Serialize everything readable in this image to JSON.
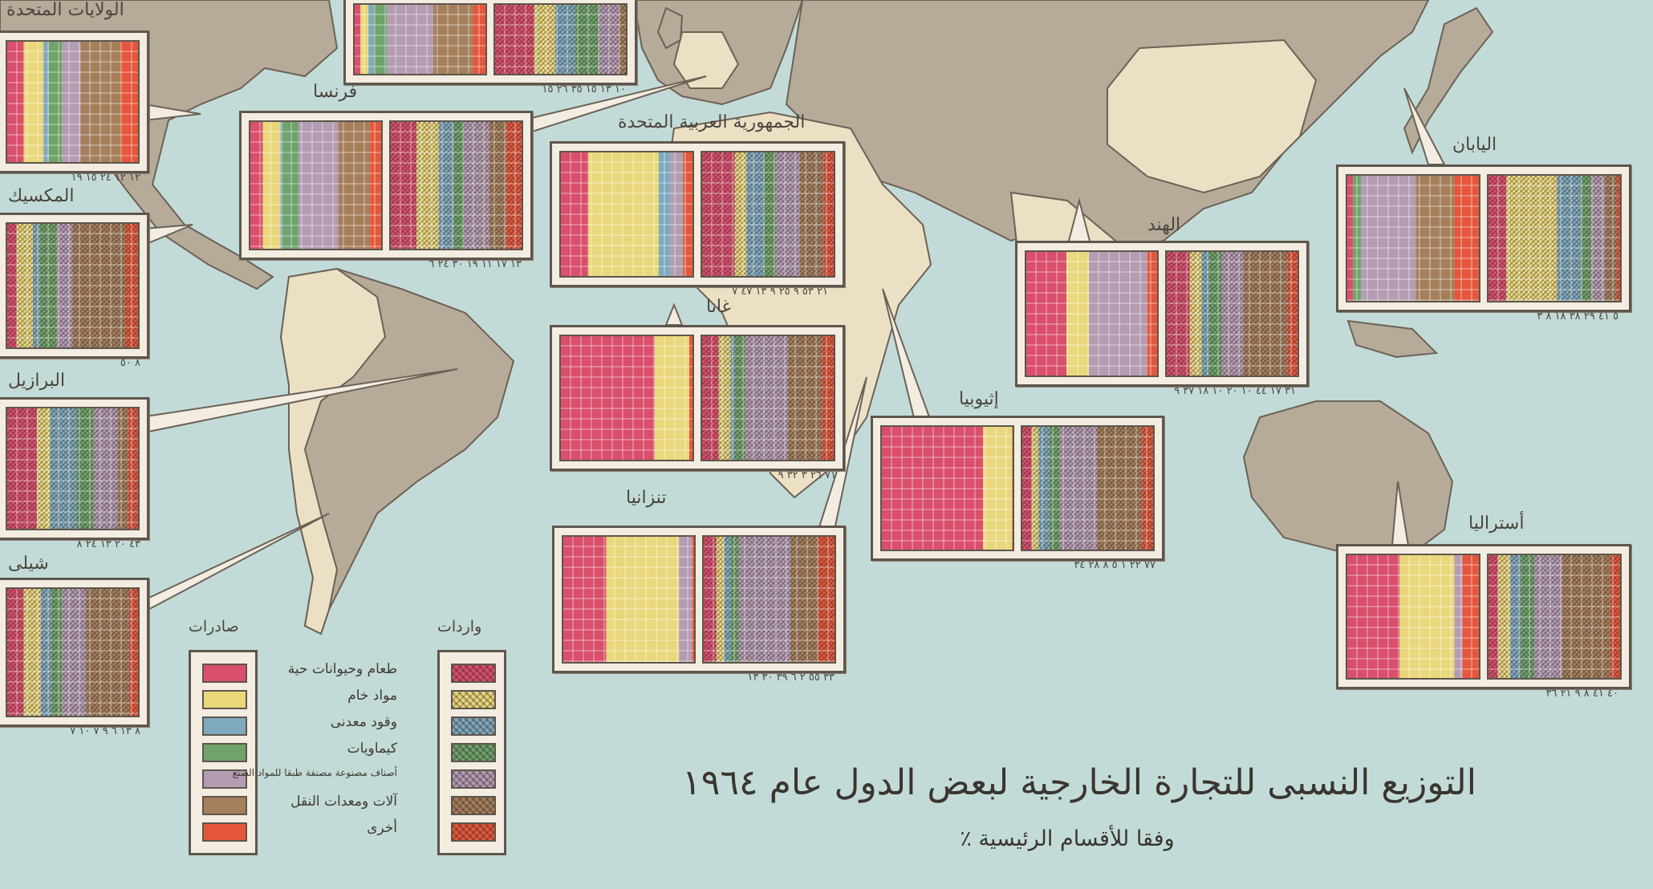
{
  "title": "التوزيع النسبى للتجارة الخارجية لبعض الدول عام ١٩٦٤",
  "subtitle": "وفقا للأقسام الرئيسية ٪",
  "legend": {
    "exports_header": "صادرات",
    "imports_header": "واردات",
    "categories": [
      {
        "label": "طعام وحيوانات حية",
        "color": "#d94f6c"
      },
      {
        "label": "مواد خام",
        "color": "#e9d77c"
      },
      {
        "label": "وقود معدنى",
        "color": "#7fa9bd"
      },
      {
        "label": "كيماويات",
        "color": "#6fa36a"
      },
      {
        "label": "أصناف مصنوعة مصنفة طبقا للمواد الصنع",
        "color": "#b49cb2"
      },
      {
        "label": "آلات ومعدات النقل",
        "color": "#a57f5c"
      },
      {
        "label": "أخرى",
        "color": "#e4573c"
      }
    ]
  },
  "map_colors": {
    "sea": "#c3dbd8",
    "land_highlight": "#ece0c4",
    "land_other": "#b6aa98"
  },
  "countries": [
    {
      "id": "usa",
      "name": "الولايات المتحدة",
      "ticks": "١٢ ١٢ ٢٤ ١٥ ١٩",
      "exports": [
        13,
        15,
        4,
        10,
        14,
        30,
        14
      ],
      "imports": null
    },
    {
      "id": "france",
      "name": "فرنسا",
      "ticks": "١٣ ١٧ ١١ ١٩ ٣٠ ٢٤ ٦",
      "exports": [
        10,
        13,
        2,
        12,
        30,
        24,
        9
      ],
      "imports": [
        20,
        17,
        11,
        8,
        19,
        13,
        12
      ]
    },
    {
      "id": "uk",
      "name": "",
      "ticks": "١٠ ١٣ ١٥ ٣٥ ٢٦ ١٥",
      "exports": [
        5,
        6,
        4,
        10,
        35,
        30,
        10
      ],
      "imports": [
        30,
        16,
        15,
        18,
        15,
        6,
        0
      ]
    },
    {
      "id": "uar",
      "name": "الجمهورية العربية المتحدة",
      "ticks": "٢١ ٥٣ ٩ ٢٥ ٩ ١٣ ٤٧ ٧",
      "exports": [
        21,
        53,
        9,
        0,
        9,
        1,
        7
      ],
      "imports": [
        25,
        9,
        13,
        9,
        18,
        18,
        8
      ]
    },
    {
      "id": "mexico",
      "name": "المكسيك",
      "ticks": "٨ ٥٠",
      "exports": null,
      "imports": [
        8,
        12,
        5,
        13,
        12,
        40,
        10
      ]
    },
    {
      "id": "brazil",
      "name": "البرازيل",
      "ticks": "٤٣ ٢٠ ١٣ ٢٤ ٨",
      "exports": null,
      "imports": [
        23,
        10,
        20,
        13,
        18,
        8,
        8
      ]
    },
    {
      "id": "chile",
      "name": "شيلى",
      "ticks": "٨ ١٣ ٦ ٩ ٧ ١٠ ٧",
      "exports": null,
      "imports": [
        13,
        13,
        8,
        8,
        18,
        33,
        7
      ]
    },
    {
      "id": "ghana",
      "name": "غانا",
      "ticks": "٧١ ٢٦ ٣ ٣٢ ٩",
      "exports": [
        71,
        26,
        0,
        0,
        0,
        0,
        3
      ],
      "imports": [
        13,
        9,
        3,
        8,
        32,
        26,
        9
      ]
    },
    {
      "id": "tanzania",
      "name": "تنزانيا",
      "ticks": "٣٣ ٥٥ ٢ ٦ ٣٩ ٣٠ ١٣",
      "exports": [
        33,
        55,
        0,
        0,
        10,
        0,
        2
      ],
      "imports": [
        10,
        6,
        5,
        6,
        39,
        21,
        13
      ]
    },
    {
      "id": "ethiopia",
      "name": "إثيوبيا",
      "ticks": "٧٧ ٢٢ ١ ٥ ٨ ٢٨ ٣٤",
      "exports": [
        77,
        22,
        0,
        0,
        0,
        0,
        1
      ],
      "imports": [
        8,
        5,
        8,
        8,
        28,
        34,
        9
      ]
    },
    {
      "id": "india",
      "name": "الهند",
      "ticks": "٣١ ١٧ ٤٤ ١٠ ٢٠ ١٠ ١٨ ٣٧ ٩",
      "exports": [
        31,
        17,
        0,
        0,
        44,
        0,
        8
      ],
      "imports": [
        20,
        10,
        6,
        11,
        18,
        37,
        9
      ]
    },
    {
      "id": "japan",
      "name": "اليابان",
      "ticks": "٥ ٤١ ٢٩ ٣٨ ١٨ ٨ ٣",
      "exports": [
        5,
        0,
        0,
        6,
        41,
        29,
        19
      ],
      "imports": [
        14,
        38,
        18,
        8,
        10,
        9,
        3
      ]
    },
    {
      "id": "australia",
      "name": "أستراليا",
      "ticks": "٤٠ ٤١ ٨ ٩ ٢١ ٣٦",
      "exports": [
        40,
        41,
        0,
        0,
        6,
        0,
        13
      ],
      "imports": [
        8,
        9,
        8,
        10,
        21,
        36,
        8
      ]
    }
  ]
}
